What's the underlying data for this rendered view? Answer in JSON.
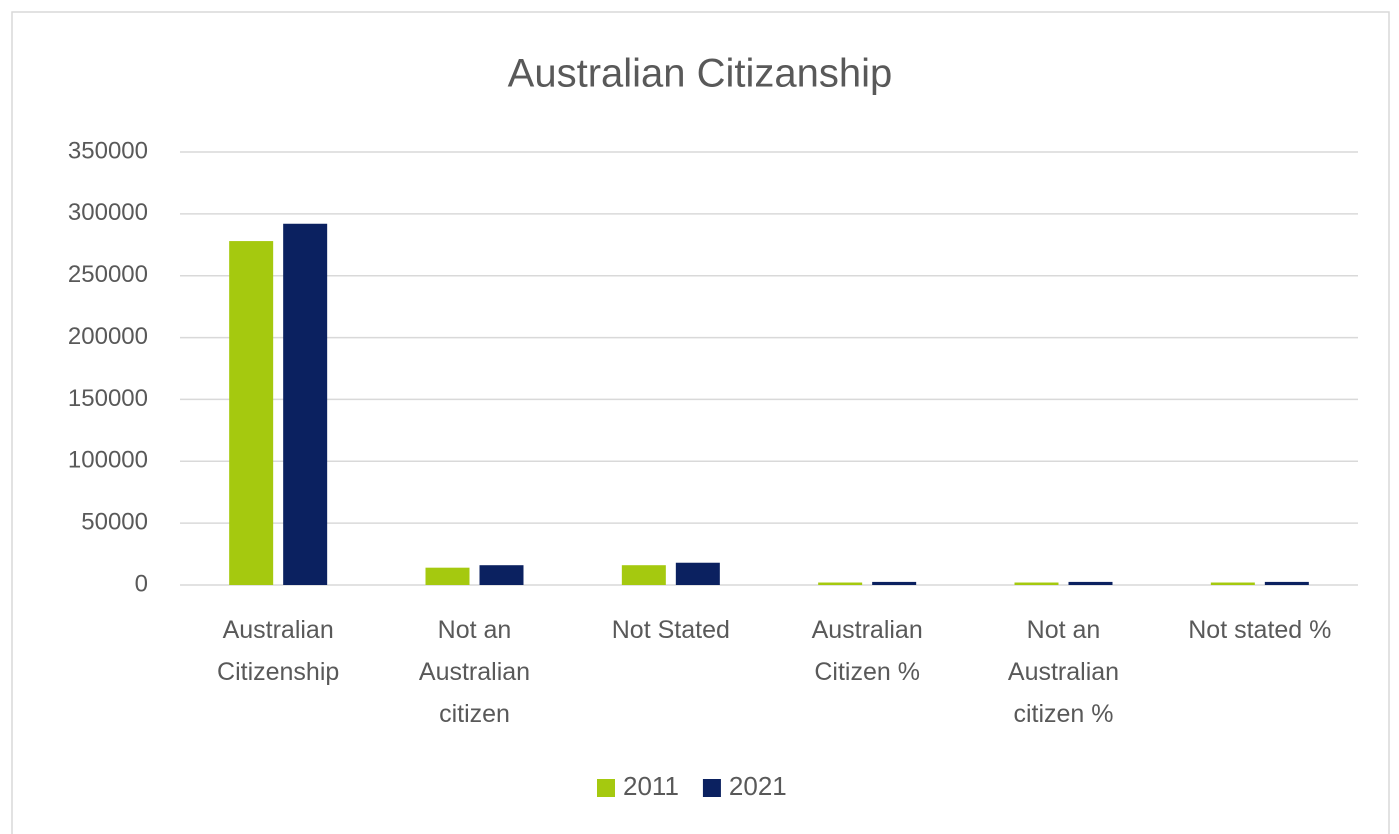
{
  "chart_data": {
    "type": "bar",
    "title": "Australian Citizanship",
    "categories": [
      "Australian Citizenship",
      "Not an Australian citizen",
      "Not Stated",
      "Australian Citizen %",
      "Not an Australian citizen %",
      "Not stated %"
    ],
    "series": [
      {
        "name": "2011",
        "color": "#a5c90f",
        "values": [
          278000,
          14000,
          16000,
          2000,
          2000,
          2000
        ]
      },
      {
        "name": "2021",
        "color": "#0b2160",
        "values": [
          292000,
          16000,
          18000,
          2500,
          2500,
          2500
        ]
      }
    ],
    "ylim": [
      0,
      350000
    ],
    "yticks": [
      0,
      50000,
      100000,
      150000,
      200000,
      250000,
      300000,
      350000
    ],
    "grid": true,
    "legend": "bottom"
  }
}
